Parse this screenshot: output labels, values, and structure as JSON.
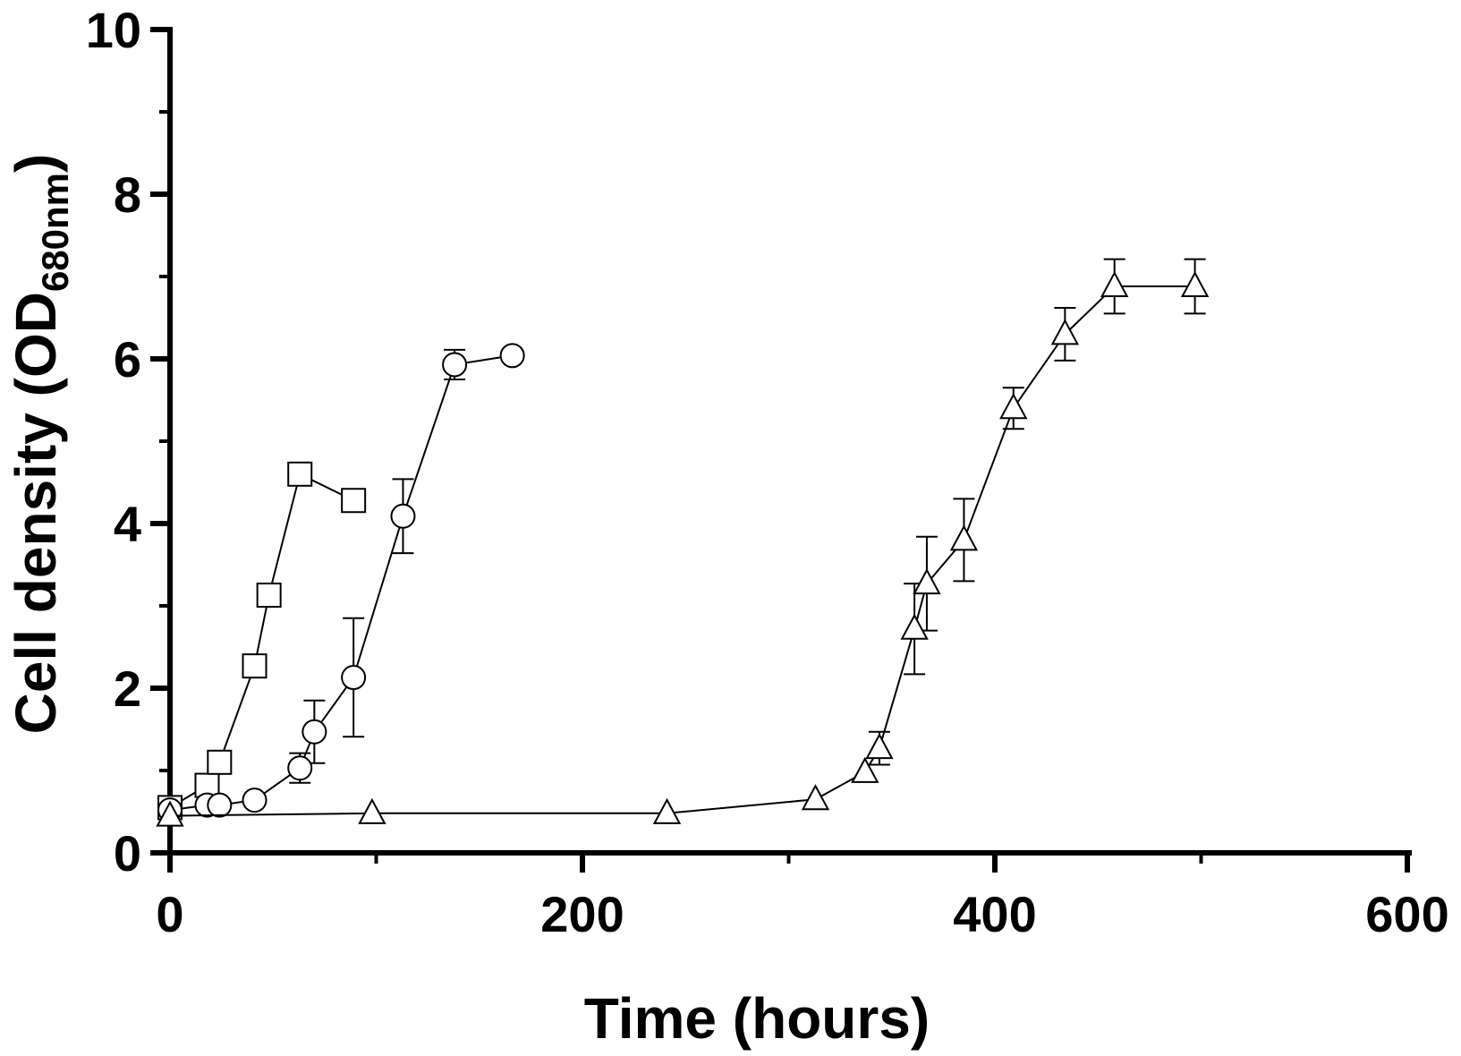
{
  "chart_data": {
    "type": "line",
    "xlabel": "Time (hours)",
    "ylabel": {
      "main": "Cell density (OD",
      "subscript": "680nm",
      "close": ")"
    },
    "xlim": [
      0,
      600
    ],
    "ylim": [
      0,
      10
    ],
    "xticks": [
      "0",
      "200",
      "400",
      "600"
    ],
    "yticks": [
      "0",
      "2",
      "4",
      "6",
      "8",
      "10"
    ],
    "grid": false,
    "legend": "none",
    "series": [
      {
        "marker": "square",
        "points": [
          {
            "x": 0,
            "y": 0.55,
            "err": 0
          },
          {
            "x": 18,
            "y": 0.82,
            "err": 0
          },
          {
            "x": 24,
            "y": 1.1,
            "err": 0
          },
          {
            "x": 41,
            "y": 2.27,
            "err": 0
          },
          {
            "x": 48,
            "y": 3.13,
            "err": 0
          },
          {
            "x": 63,
            "y": 4.6,
            "err": 0
          },
          {
            "x": 89,
            "y": 4.28,
            "err": 0
          }
        ]
      },
      {
        "marker": "circle",
        "points": [
          {
            "x": 0,
            "y": 0.52,
            "err": 0
          },
          {
            "x": 18,
            "y": 0.58,
            "err": 0
          },
          {
            "x": 24,
            "y": 0.58,
            "err": 0
          },
          {
            "x": 41,
            "y": 0.64,
            "err": 0
          },
          {
            "x": 63,
            "y": 1.03,
            "err": 0.18
          },
          {
            "x": 70,
            "y": 1.47,
            "err": 0.38
          },
          {
            "x": 89,
            "y": 2.13,
            "err": 0.72
          },
          {
            "x": 113,
            "y": 4.09,
            "err": 0.45
          },
          {
            "x": 138,
            "y": 5.93,
            "err": 0.18
          },
          {
            "x": 166,
            "y": 6.04,
            "err": 0
          }
        ]
      },
      {
        "marker": "triangle",
        "points": [
          {
            "x": 0,
            "y": 0.45,
            "err": 0
          },
          {
            "x": 98,
            "y": 0.48,
            "err": 0
          },
          {
            "x": 241,
            "y": 0.48,
            "err": 0
          },
          {
            "x": 313,
            "y": 0.65,
            "err": 0
          },
          {
            "x": 337,
            "y": 0.98,
            "err": 0
          },
          {
            "x": 344,
            "y": 1.27,
            "err": 0.2
          },
          {
            "x": 361,
            "y": 2.72,
            "err": 0.55
          },
          {
            "x": 367,
            "y": 3.27,
            "err": 0.57
          },
          {
            "x": 385,
            "y": 3.8,
            "err": 0.5
          },
          {
            "x": 409,
            "y": 5.4,
            "err": 0.25
          },
          {
            "x": 434,
            "y": 6.3,
            "err": 0.32
          },
          {
            "x": 458,
            "y": 6.88,
            "err": 0.33
          },
          {
            "x": 497,
            "y": 6.88,
            "err": 0.33
          }
        ]
      }
    ]
  }
}
